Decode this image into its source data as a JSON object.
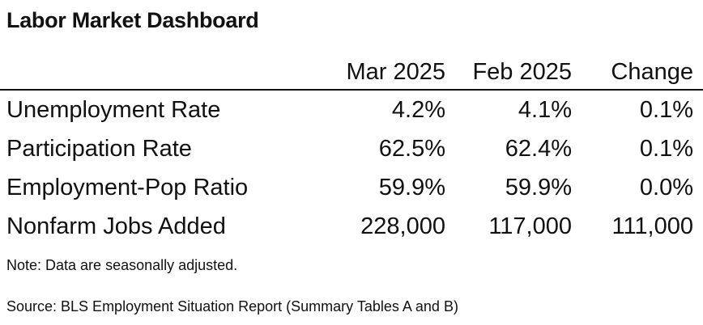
{
  "title": "Labor Market Dashboard",
  "table": {
    "headers": [
      "Mar 2025",
      "Feb 2025",
      "Change"
    ],
    "rows": [
      {
        "label": "Unemployment Rate",
        "mar": "4.2%",
        "feb": "4.1%",
        "change": "0.1%"
      },
      {
        "label": "Participation Rate",
        "mar": "62.5%",
        "feb": "62.4%",
        "change": "0.1%"
      },
      {
        "label": "Employment-Pop Ratio",
        "mar": "59.9%",
        "feb": "59.9%",
        "change": "0.0%"
      },
      {
        "label": "Nonfarm Jobs Added",
        "mar": "228,000",
        "feb": "117,000",
        "change": "111,000"
      }
    ]
  },
  "note": "Note: Data are seasonally adjusted.",
  "source": "Source: BLS Employment Situation Report (Summary Tables A and B)"
}
